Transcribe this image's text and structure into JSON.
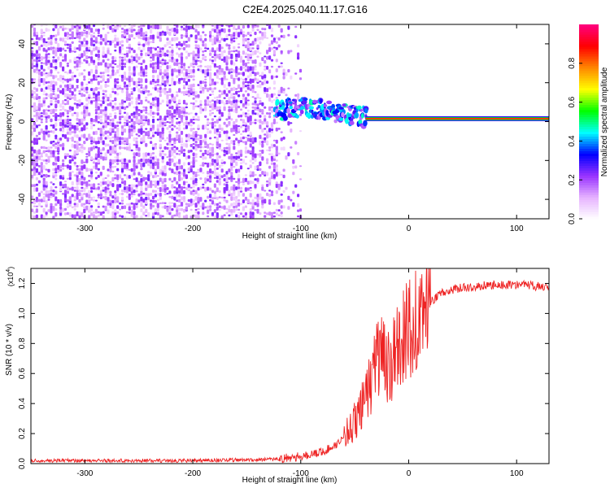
{
  "figure": {
    "title": "C2E4.2025.040.11.17.G16"
  },
  "chart_data": [
    {
      "type": "heatmap",
      "title": "C2E4.2025.040.11.17.G16",
      "xlabel": "Height of straight line (km)",
      "ylabel": "Frequency (Hz)",
      "xlim": [
        -350,
        130
      ],
      "ylim": [
        -50,
        50
      ],
      "xticks": [
        -300,
        -200,
        -100,
        0,
        100
      ],
      "yticks": [
        -40,
        -20,
        0,
        20,
        40
      ],
      "grid": false,
      "colorbar": {
        "label": "Normalized spectral amplitude",
        "range": [
          0.0,
          1.0
        ],
        "ticks": [
          "0.0",
          "0.2",
          "0.4",
          "0.6",
          "0.8"
        ],
        "colors": [
          "#ffffff",
          "#e6b3ff",
          "#9933ff",
          "#0000ff",
          "#00ffff",
          "#00ff00",
          "#ffff00",
          "#ff8800",
          "#ff0000",
          "#ff0080"
        ]
      },
      "features": {
        "noise_region_x": [
          -350,
          -115
        ],
        "doppler_track": [
          {
            "x": -125,
            "y": 5
          },
          {
            "x": -100,
            "y": 8
          },
          {
            "x": -80,
            "y": 6
          },
          {
            "x": -60,
            "y": 4
          },
          {
            "x": -40,
            "y": 2
          },
          {
            "x": 0,
            "y": 1.5
          },
          {
            "x": 130,
            "y": 1.5
          }
        ],
        "carrier_line_x": [
          -40,
          130
        ],
        "carrier_frequency_hz": 1.5
      }
    },
    {
      "type": "line",
      "xlabel": "Height of straight line (km)",
      "ylabel": "SNR (10 * v/v)",
      "y_multiplier": "(x10^4)",
      "xlim": [
        -350,
        130
      ],
      "ylim": [
        0.0,
        1.3
      ],
      "xticks": [
        -300,
        -200,
        -100,
        0,
        100
      ],
      "yticks": [
        0.0,
        0.2,
        0.4,
        0.6,
        0.8,
        1.0,
        1.2
      ],
      "grid": false,
      "series": [
        {
          "color": "#ee2222",
          "x": [
            -350,
            -300,
            -250,
            -200,
            -150,
            -120,
            -100,
            -90,
            -80,
            -70,
            -60,
            -50,
            -45,
            -40,
            -35,
            -30,
            -25,
            -20,
            -15,
            -10,
            -5,
            0,
            10,
            20,
            30,
            40,
            60,
            80,
            100,
            110,
            120,
            130
          ],
          "y": [
            0.02,
            0.02,
            0.02,
            0.02,
            0.025,
            0.03,
            0.05,
            0.06,
            0.08,
            0.11,
            0.18,
            0.28,
            0.35,
            0.45,
            0.55,
            0.68,
            0.75,
            0.6,
            0.7,
            0.8,
            0.85,
            0.88,
            1.0,
            1.08,
            1.13,
            1.16,
            1.18,
            1.19,
            1.19,
            1.19,
            1.18,
            1.18
          ]
        }
      ]
    }
  ]
}
